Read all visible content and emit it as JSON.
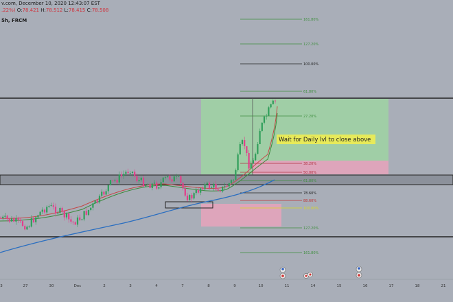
{
  "header": {
    "line1": "v.com, December 10, 2020 12:43:07 EST",
    "change_text": ".22%)",
    "o_label": "O:",
    "o_val": "78.421",
    "h_label": "H:",
    "h_val": "78.512",
    "l_label": "L:",
    "l_val": "78.415",
    "c_label": "C:",
    "c_val": "78.508",
    "symbol_suffix": "5h, FRCM"
  },
  "fib_levels": [
    {
      "label": "161.80%",
      "color": "#3f8f3f"
    },
    {
      "label": "127.20%",
      "color": "#3f8f3f"
    },
    {
      "label": "100.00%",
      "color": "#222222"
    },
    {
      "label": "61.80%",
      "color": "#3f8f3f"
    },
    {
      "label": "27.20%",
      "color": "#3f8f3f"
    },
    {
      "label": "38.20%",
      "color": "#b03040"
    },
    {
      "label": "50.00%",
      "color": "#b03040"
    },
    {
      "label": "61.80%",
      "color": "#3f8f3f"
    },
    {
      "label": "78.60%",
      "color": "#222222"
    },
    {
      "label": "88.60%",
      "color": "#c03030"
    },
    {
      "label": "100.00%",
      "color": "#d8d820"
    },
    {
      "label": "127.20%",
      "color": "#3f8f3f"
    },
    {
      "label": "161.80%",
      "color": "#3f8f3f"
    }
  ],
  "annotation": {
    "text": "Wait for Daily lvl to close above"
  },
  "x_axis": {
    "ticks": [
      "3",
      "27",
      "30",
      "Dec",
      "2",
      "3",
      "4",
      "7",
      "8",
      "9",
      "10",
      "11",
      "14",
      "15",
      "16",
      "17",
      "18",
      "21"
    ]
  },
  "colors": {
    "background": "#a9aeb8",
    "candle_up": "#2f9e5a",
    "candle_down": "#e23f8a",
    "ema_blue": "#2a6ec0",
    "ema_green": "#3d8a3d",
    "ema_red": "#c44848",
    "profit_zone": "#9fd4a2",
    "loss_zone": "#e3a4bb",
    "annotation_bg": "#e7ea5a"
  },
  "icons": [
    "event-flag-icon",
    "event-calendar-icon",
    "event-flag-icon"
  ]
}
